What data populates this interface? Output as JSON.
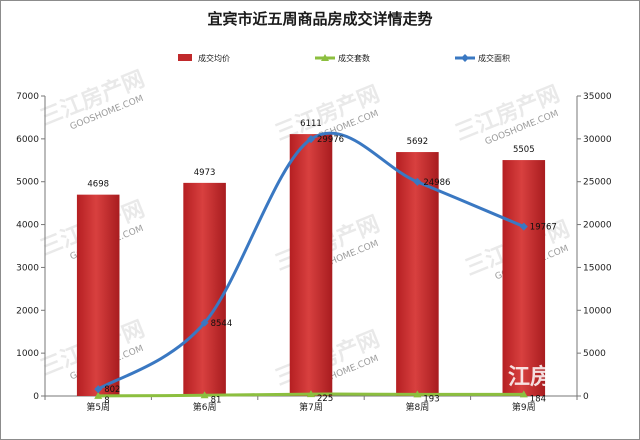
{
  "chart_data": {
    "type": "bar+line",
    "title": "宜宾市近五周商品房成交详情走势",
    "categories": [
      "第5周",
      "第6周",
      "第7周",
      "第8周",
      "第9周"
    ],
    "series": [
      {
        "name": "成交均价",
        "kind": "bar",
        "axis": "left",
        "color": "#c0292b",
        "values": [
          4698,
          4973,
          6111,
          5692,
          5505
        ]
      },
      {
        "name": "成交套数",
        "kind": "line",
        "axis": "right",
        "color": "#8cbf3f",
        "values": [
          8,
          81,
          225,
          193,
          184
        ]
      },
      {
        "name": "成交面积",
        "kind": "line",
        "axis": "right",
        "color": "#3a78c2",
        "values": [
          802,
          8544,
          29976,
          24986,
          19767
        ]
      }
    ],
    "y_left": {
      "min": 0,
      "max": 7000,
      "ticks": [
        0,
        1000,
        2000,
        3000,
        4000,
        5000,
        6000,
        7000
      ]
    },
    "y_right": {
      "min": 0,
      "max": 35000,
      "ticks": [
        0,
        5000,
        10000,
        15000,
        20000,
        25000,
        30000,
        35000
      ]
    },
    "legend_position": "top",
    "watermark": [
      "三江房产网",
      "GOOSHOME.COM",
      "江房"
    ]
  }
}
